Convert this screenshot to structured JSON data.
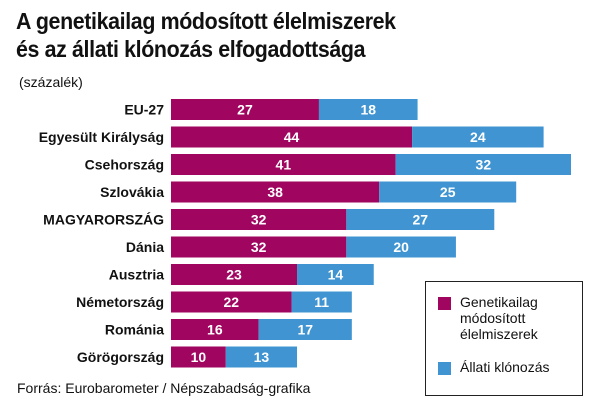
{
  "title": "A genetikailag módosított élelmiszerek\nés az állati klónozás elfogadottsága",
  "subtitle": "(százalék)",
  "source": "Forrás: Eurobarometer / Népszabadság-grafika",
  "colors": {
    "gm": "#a0065f",
    "cloning": "#3f94d1"
  },
  "legend": {
    "gm_label": "Genetikailag\nmódosított\nélelmiszerek",
    "cloning_label": "Állati klónozás"
  },
  "chart_data": {
    "type": "bar",
    "orientation": "horizontal",
    "stacked": true,
    "categories": [
      "EU-27",
      "Egyesült Királyság",
      "Csehország",
      "Szlovákia",
      "MAGYARORSZÁG",
      "Dánia",
      "Ausztria",
      "Németország",
      "Románia",
      "Görögország"
    ],
    "series": [
      {
        "name": "Genetikailag módosított élelmiszerek",
        "values": [
          27,
          44,
          41,
          38,
          32,
          32,
          23,
          22,
          16,
          10
        ]
      },
      {
        "name": "Állati klónozás",
        "values": [
          18,
          24,
          32,
          25,
          27,
          20,
          14,
          11,
          17,
          13
        ]
      }
    ],
    "title": "A genetikailag módosított élelmiszerek és az állati klónozás elfogadottsága",
    "subtitle": "(százalék)",
    "xlim": [
      0,
      73
    ],
    "grid": false,
    "legend_position": "bottom-right"
  }
}
